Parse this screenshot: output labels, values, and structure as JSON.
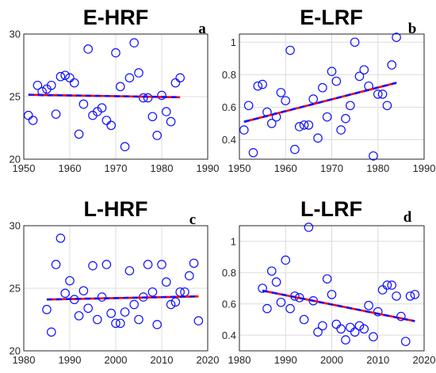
{
  "chart_data": [
    {
      "type": "scatter",
      "title": "E-HRF",
      "panel_label": "a",
      "xlim": [
        1950,
        1990
      ],
      "ylim": [
        20,
        30
      ],
      "xticks": [
        1950,
        1960,
        1970,
        1980,
        1990
      ],
      "yticks": [
        20,
        25,
        30
      ],
      "grid": true,
      "x": [
        1951,
        1952,
        1953,
        1954,
        1955,
        1956,
        1957,
        1958,
        1959,
        1960,
        1961,
        1962,
        1963,
        1964,
        1965,
        1966,
        1967,
        1968,
        1969,
        1970,
        1971,
        1972,
        1973,
        1974,
        1975,
        1976,
        1977,
        1978,
        1979,
        1980,
        1981,
        1982,
        1983,
        1984
      ],
      "y": [
        23.5,
        23.1,
        25.9,
        25.4,
        25.6,
        25.9,
        23.6,
        26.6,
        26.7,
        26.5,
        26.1,
        22.0,
        24.4,
        28.8,
        23.5,
        23.8,
        24.1,
        23.1,
        22.7,
        28.5,
        25.8,
        21.0,
        26.5,
        29.3,
        26.9,
        24.9,
        24.9,
        23.4,
        21.9,
        25.1,
        23.8,
        23.0,
        26.1,
        26.5
      ],
      "trend": {
        "x": [
          1951,
          1984
        ],
        "y": [
          25.15,
          24.95
        ]
      }
    },
    {
      "type": "scatter",
      "title": "E-LRF",
      "panel_label": "b",
      "xlim": [
        1950,
        1990
      ],
      "ylim": [
        0.28,
        1.05
      ],
      "xticks": [
        1950,
        1960,
        1970,
        1980,
        1990
      ],
      "yticks": [
        0.4,
        0.6,
        0.8,
        1
      ],
      "grid": true,
      "x": [
        1951,
        1952,
        1953,
        1954,
        1955,
        1956,
        1957,
        1958,
        1959,
        1960,
        1961,
        1962,
        1963,
        1964,
        1965,
        1966,
        1967,
        1968,
        1969,
        1970,
        1971,
        1972,
        1973,
        1974,
        1975,
        1976,
        1977,
        1978,
        1979,
        1980,
        1981,
        1982,
        1983,
        1984
      ],
      "y": [
        0.46,
        0.61,
        0.32,
        0.73,
        0.74,
        0.57,
        0.5,
        0.54,
        0.69,
        0.64,
        0.95,
        0.34,
        0.48,
        0.49,
        0.49,
        0.65,
        0.41,
        0.72,
        0.54,
        0.82,
        0.76,
        0.46,
        0.53,
        0.61,
        1.0,
        0.79,
        0.83,
        0.73,
        0.3,
        0.68,
        0.68,
        0.61,
        0.86,
        1.03
      ],
      "trend": {
        "x": [
          1951,
          1984
        ],
        "y": [
          0.51,
          0.75
        ]
      }
    },
    {
      "type": "scatter",
      "title": "L-HRF",
      "panel_label": "c",
      "xlim": [
        1980,
        2020
      ],
      "ylim": [
        20,
        30
      ],
      "xticks": [
        1980,
        1990,
        2000,
        2010,
        2020
      ],
      "yticks": [
        20,
        25,
        30
      ],
      "grid": true,
      "x": [
        1985,
        1986,
        1987,
        1988,
        1989,
        1990,
        1991,
        1992,
        1993,
        1994,
        1995,
        1996,
        1997,
        1998,
        1999,
        2000,
        2001,
        2002,
        2003,
        2004,
        2005,
        2006,
        2007,
        2008,
        2009,
        2010,
        2011,
        2012,
        2013,
        2014,
        2015,
        2016,
        2017,
        2018
      ],
      "y": [
        23.3,
        21.5,
        26.9,
        29.0,
        24.6,
        25.6,
        24.1,
        22.8,
        24.8,
        23.4,
        26.8,
        22.5,
        24.3,
        26.9,
        23.0,
        22.2,
        22.2,
        23.1,
        26.4,
        23.7,
        22.5,
        24.3,
        26.9,
        24.7,
        22.1,
        26.9,
        25.5,
        23.7,
        23.9,
        24.7,
        24.7,
        26.0,
        27.0,
        22.4
      ],
      "trend": {
        "x": [
          1985,
          2018
        ],
        "y": [
          24.1,
          24.35
        ]
      }
    },
    {
      "type": "scatter",
      "title": "L-LRF",
      "panel_label": "d",
      "xlim": [
        1980,
        2020
      ],
      "ylim": [
        0.3,
        1.1
      ],
      "xticks": [
        1980,
        1990,
        2000,
        2010,
        2020
      ],
      "yticks": [
        0.4,
        0.6,
        0.8,
        1
      ],
      "grid": true,
      "x": [
        1985,
        1986,
        1987,
        1988,
        1989,
        1990,
        1991,
        1992,
        1993,
        1994,
        1995,
        1996,
        1997,
        1998,
        1999,
        2000,
        2001,
        2002,
        2003,
        2004,
        2005,
        2006,
        2007,
        2008,
        2009,
        2010,
        2011,
        2012,
        2013,
        2014,
        2015,
        2016,
        2017,
        2018
      ],
      "y": [
        0.7,
        0.57,
        0.81,
        0.74,
        0.61,
        0.88,
        0.57,
        0.65,
        0.64,
        0.5,
        1.09,
        0.62,
        0.42,
        0.46,
        0.76,
        0.66,
        0.47,
        0.44,
        0.37,
        0.45,
        0.42,
        0.46,
        0.44,
        0.59,
        0.39,
        0.55,
        0.69,
        0.72,
        0.72,
        0.65,
        0.52,
        0.36,
        0.65,
        0.66
      ],
      "trend": {
        "x": [
          1985,
          2018
        ],
        "y": [
          0.685,
          0.49
        ]
      }
    }
  ],
  "colors": {
    "points": "#1010ff",
    "trend_red": "#ff0000",
    "trend_blue": "#1414ff",
    "grid": "#dcdcdc",
    "axis": "#262626"
  }
}
